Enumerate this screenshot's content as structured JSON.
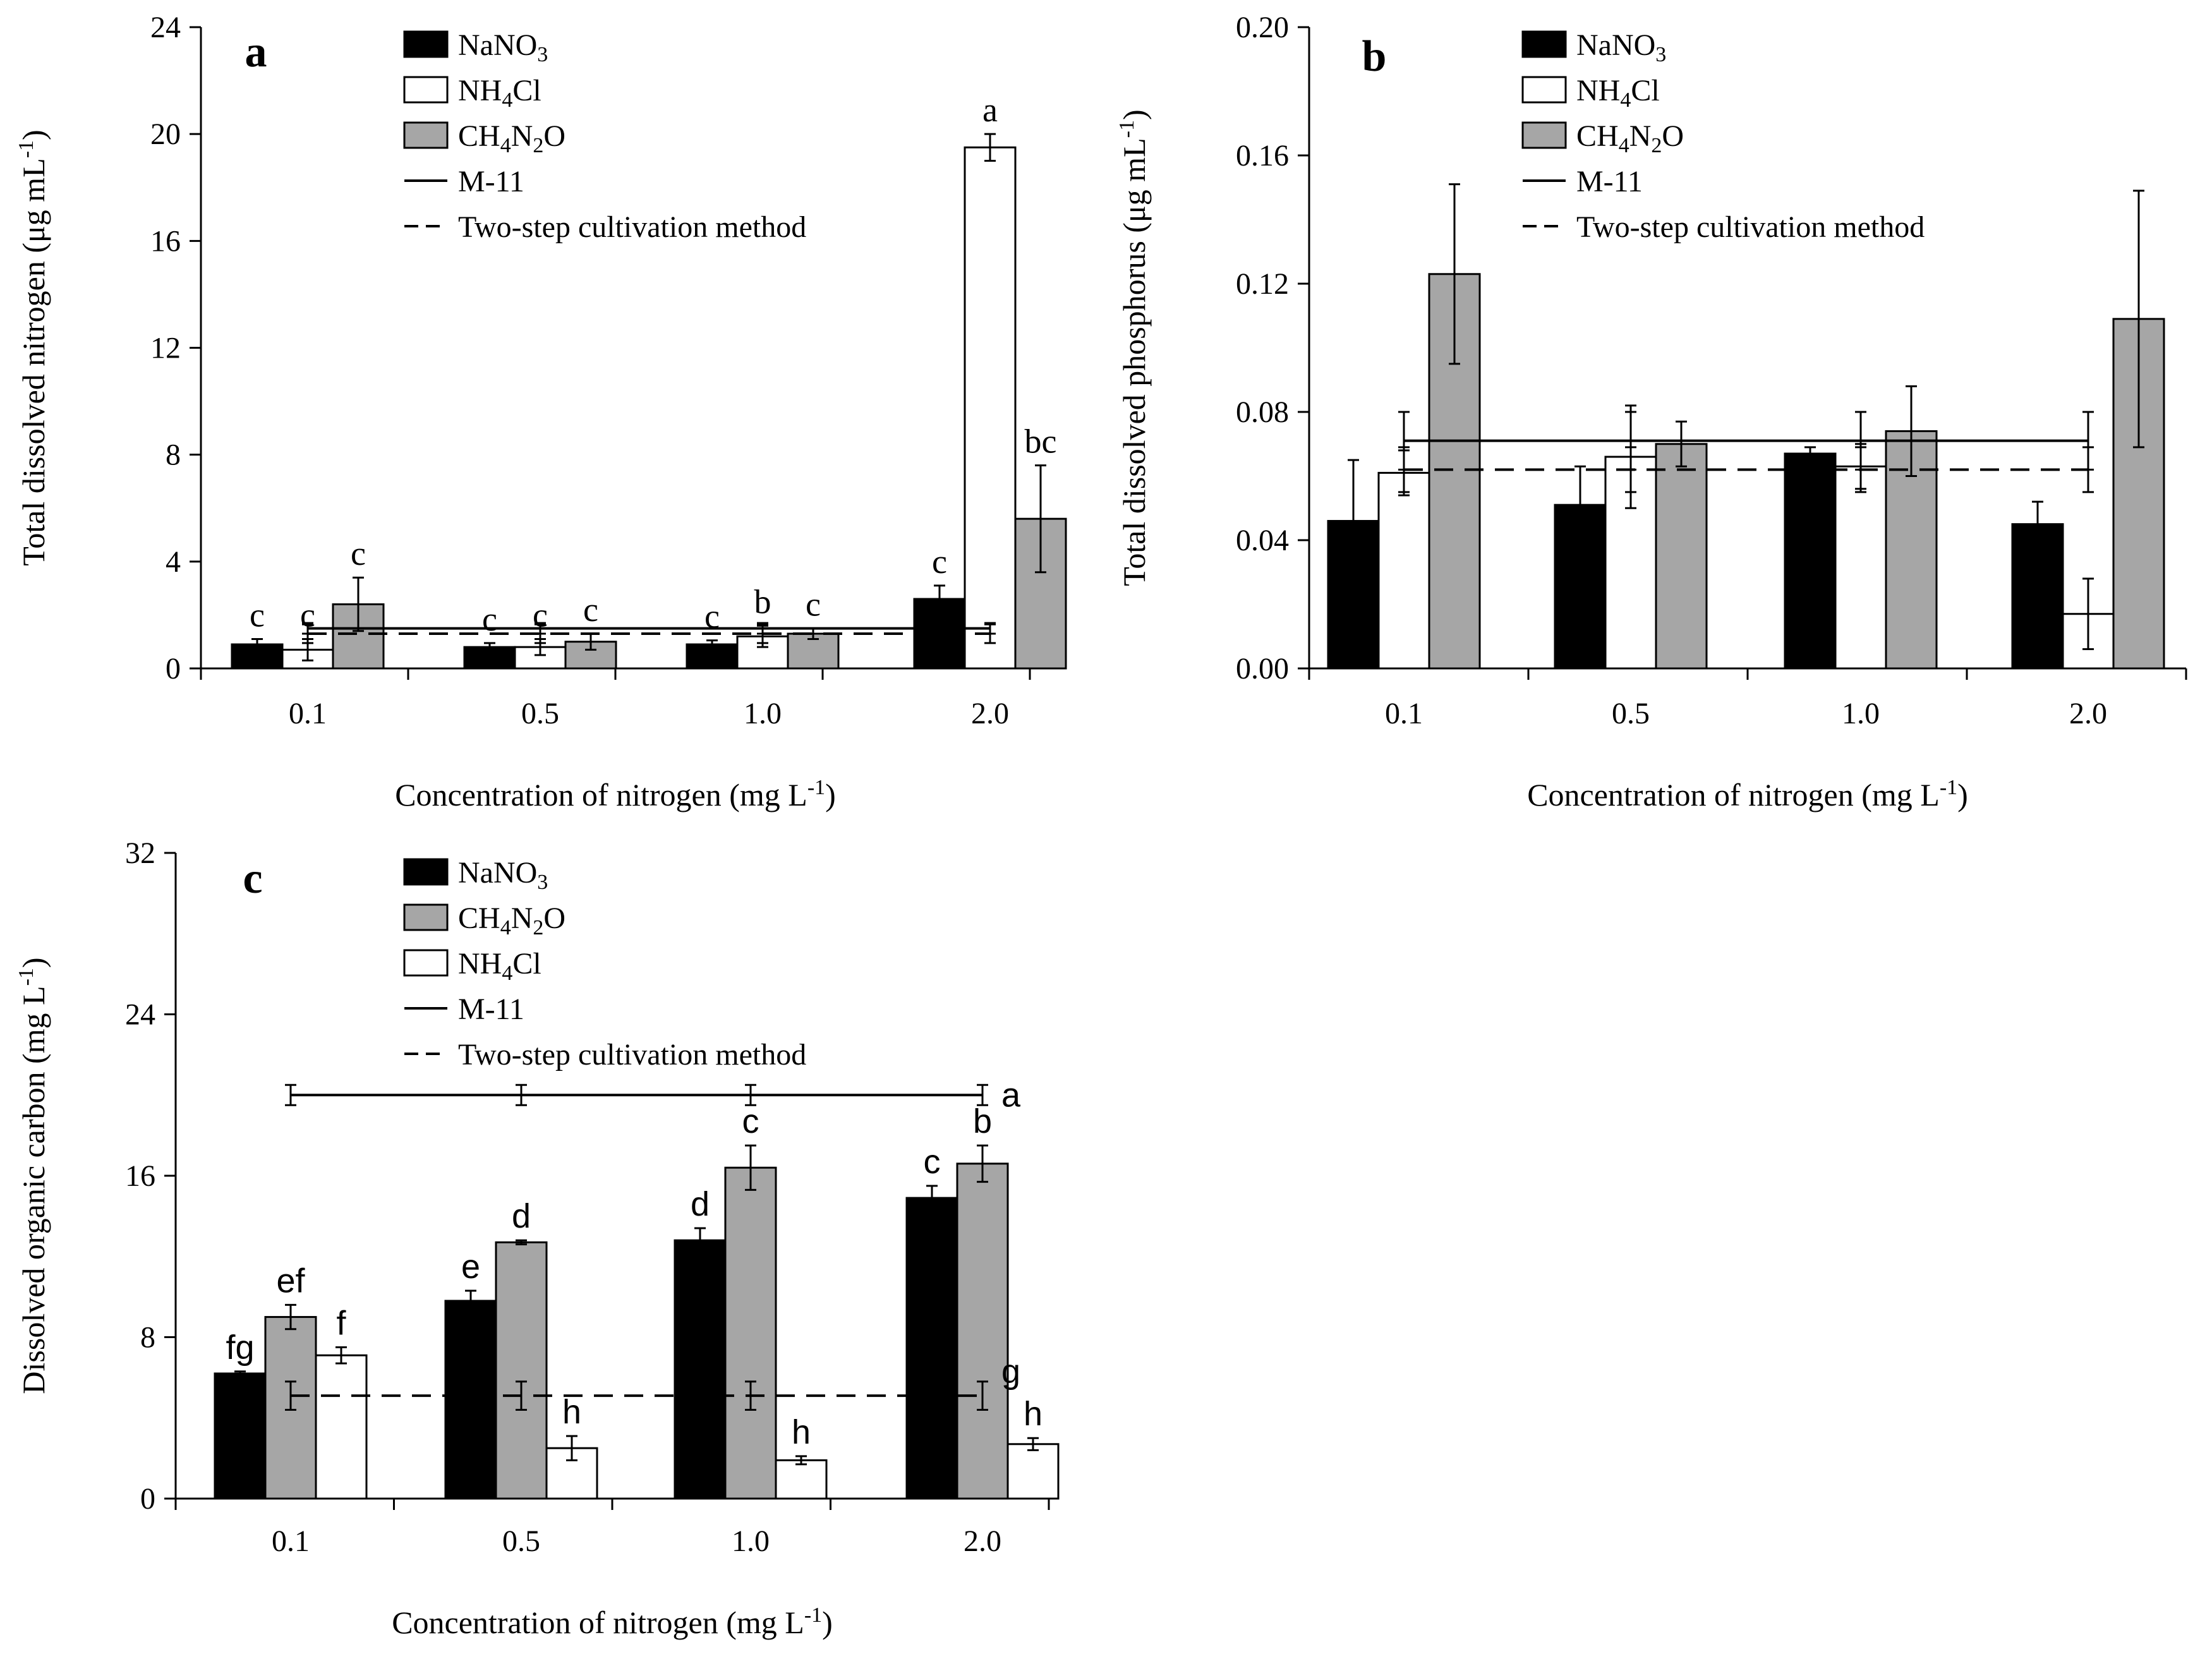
{
  "chart_data": [
    {
      "panel": "a",
      "type": "bar",
      "categories": [
        "0.1",
        "0.5",
        "1.0",
        "2.0"
      ],
      "xlabel": "Concentration of nitrogen (mg L",
      "xlabel_sup": "-1",
      "xlabel_tail": ")",
      "ylabel": "Total dissolved nitrogen (μg mL",
      "ylabel_sup": "-1",
      "ylabel_tail": ")",
      "ylim": [
        0,
        24
      ],
      "yticks": [
        "0",
        "4",
        "8",
        "12",
        "16",
        "20",
        "24"
      ],
      "series": [
        {
          "name": "NaNO3",
          "fill": "#000000",
          "values": [
            0.9,
            0.8,
            0.9,
            2.6
          ],
          "err": [
            0.2,
            0.15,
            0.15,
            0.5
          ],
          "letters": [
            "c",
            "c",
            "c",
            "c"
          ]
        },
        {
          "name": "NH4Cl",
          "fill": "#ffffff",
          "values": [
            0.7,
            0.8,
            1.2,
            19.5
          ],
          "err": [
            0.4,
            0.3,
            0.4,
            0.5
          ],
          "letters": [
            "c",
            "c",
            "b",
            "a"
          ]
        },
        {
          "name": "CH4N2O",
          "fill": "#a6a6a6",
          "values": [
            2.4,
            1.0,
            1.3,
            5.6
          ],
          "err": [
            1.0,
            0.3,
            0.2,
            2.0
          ],
          "letters": [
            "c",
            "c",
            "c",
            "bc"
          ]
        }
      ],
      "lines": [
        {
          "name": "M-11",
          "style": "solid",
          "value": 1.5,
          "err": 0.2
        },
        {
          "name": "Two-step cultivation method",
          "style": "dashed",
          "value": 1.3,
          "err": 0.35
        }
      ],
      "legend": [
        {
          "label": "NaNO",
          "sub": "3",
          "tail": ""
        },
        {
          "label": "NH",
          "sub": "4",
          "tail": "Cl"
        },
        {
          "label": "CH",
          "sub": "4",
          "tail": "N",
          "sub2": "2",
          "tail2": "O"
        },
        {
          "label": "M-11"
        },
        {
          "label": "Two-step cultivation method"
        }
      ]
    },
    {
      "panel": "b",
      "type": "bar",
      "categories": [
        "0.1",
        "0.5",
        "1.0",
        "2.0"
      ],
      "xlabel": "Concentration of nitrogen (mg L",
      "xlabel_sup": "-1",
      "xlabel_tail": ")",
      "ylabel": "Total dissolved phosphorus (μg  mL",
      "ylabel_sup": "-1",
      "ylabel_tail": ")",
      "ylim": [
        0,
        0.2
      ],
      "yticks": [
        "0.00",
        "0.04",
        "0.08",
        "0.12",
        "0.16",
        "0.20"
      ],
      "series": [
        {
          "name": "NaNO3",
          "fill": "#000000",
          "values": [
            0.046,
            0.051,
            0.067,
            0.045
          ],
          "err": [
            0.019,
            0.012,
            0.002,
            0.007
          ]
        },
        {
          "name": "NH4Cl",
          "fill": "#ffffff",
          "values": [
            0.061,
            0.066,
            0.063,
            0.017
          ],
          "err": [
            0.007,
            0.016,
            0.007,
            0.011
          ]
        },
        {
          "name": "CH4N2O",
          "fill": "#a6a6a6",
          "values": [
            0.123,
            0.07,
            0.074,
            0.109
          ],
          "err": [
            0.028,
            0.007,
            0.014,
            0.04
          ]
        }
      ],
      "lines": [
        {
          "name": "M-11",
          "style": "solid",
          "value": 0.071,
          "err": 0.009
        },
        {
          "name": "Two-step cultivation method",
          "style": "dashed",
          "value": 0.062,
          "err": 0.007
        }
      ],
      "legend": [
        {
          "label": "NaNO",
          "sub": "3",
          "tail": ""
        },
        {
          "label": "NH",
          "sub": "4",
          "tail": "Cl"
        },
        {
          "label": "CH",
          "sub": "4",
          "tail": "N",
          "sub2": "2",
          "tail2": "O"
        },
        {
          "label": "M-11"
        },
        {
          "label": "Two-step cultivation method"
        }
      ]
    },
    {
      "panel": "c",
      "type": "bar",
      "categories": [
        "0.1",
        "0.5",
        "1.0",
        "2.0"
      ],
      "xlabel": "Concentration of nitrogen (mg L",
      "xlabel_sup": "-1",
      "xlabel_tail": ")",
      "ylabel": "Dissolved organic carbon (mg L",
      "ylabel_sup": "-1",
      "ylabel_tail": ")",
      "ylim": [
        0,
        32
      ],
      "yticks": [
        "0",
        "8",
        "16",
        "24",
        "32"
      ],
      "series": [
        {
          "name": "NaNO3",
          "fill": "#000000",
          "values": [
            6.2,
            9.8,
            12.8,
            14.9
          ],
          "err": [
            0.1,
            0.5,
            0.6,
            0.6
          ],
          "letters": [
            "fg",
            "e",
            "d",
            "c"
          ]
        },
        {
          "name": "CH4N2O",
          "fill": "#a6a6a6",
          "values": [
            9.0,
            12.7,
            16.4,
            16.6
          ],
          "err": [
            0.6,
            0.1,
            1.1,
            0.9
          ],
          "letters": [
            "ef",
            "d",
            "c",
            "b"
          ]
        },
        {
          "name": "NH4Cl",
          "fill": "#ffffff",
          "values": [
            7.1,
            2.5,
            1.9,
            2.7
          ],
          "err": [
            0.4,
            0.6,
            0.2,
            0.3
          ],
          "letters": [
            "f",
            "h",
            "h",
            "h"
          ]
        }
      ],
      "lines": [
        {
          "name": "M-11",
          "style": "solid",
          "value": 20.0,
          "err": 0.5,
          "letter": "a"
        },
        {
          "name": "Two-step cultivation method",
          "style": "dashed",
          "value": 5.1,
          "err": 0.7,
          "letter": "g"
        }
      ],
      "legend": [
        {
          "label": "NaNO",
          "sub": "3",
          "tail": ""
        },
        {
          "label": "CH",
          "sub": "4",
          "tail": "N",
          "sub2": "2",
          "tail2": "O"
        },
        {
          "label": "NH",
          "sub": "4",
          "tail": "Cl"
        },
        {
          "label": "M-11"
        },
        {
          "label": "Two-step cultivation method"
        }
      ]
    }
  ]
}
